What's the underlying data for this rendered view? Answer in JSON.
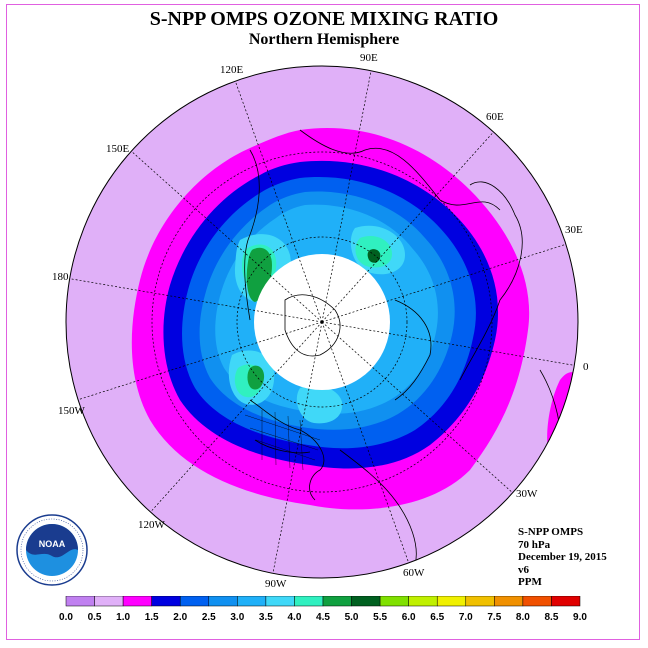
{
  "header": {
    "title": "S-NPP OMPS OZONE MIXING RATIO",
    "subtitle": "Northern Hemisphere"
  },
  "longitude_labels": [
    "90E",
    "60E",
    "30E",
    "0",
    "30W",
    "60W",
    "90W",
    "120W",
    "150W",
    "180",
    "150E",
    "120E"
  ],
  "info": {
    "instrument": "S-NPP OMPS",
    "pressure": "70 hPa",
    "date": "December 19, 2015",
    "version": "v6",
    "units": "PPM"
  },
  "logo": {
    "text": "NOAA",
    "ring_text": "NATIONAL OCEANIC AND ATMOSPHERIC ADMINISTRATION · U.S. DEPARTMENT OF COMMERCE"
  },
  "colorbar": {
    "ticks": [
      "0.0",
      "0.5",
      "1.0",
      "1.5",
      "2.0",
      "2.5",
      "3.0",
      "3.5",
      "4.0",
      "4.5",
      "5.0",
      "5.5",
      "6.0",
      "6.5",
      "7.0",
      "7.5",
      "8.0",
      "8.5",
      "9.0"
    ],
    "colors": [
      "#c080f0",
      "#e0b0f8",
      "#ff00ff",
      "#0000e0",
      "#0060f0",
      "#1090f0",
      "#20b0f8",
      "#40d8f8",
      "#30f0c0",
      "#10a040",
      "#006020",
      "#80e000",
      "#c0f000",
      "#f0f000",
      "#f0c000",
      "#f09000",
      "#f05000",
      "#e00000",
      "#804020"
    ]
  },
  "colors": {
    "background_fill": "#e0b0f8",
    "magenta": "#ff00ff",
    "dark_blue": "#0000e0",
    "mid_blue": "#0060f0",
    "light_blue": "#1090f0",
    "sky_blue": "#20b0f8",
    "cyan": "#40d8f8",
    "aqua": "#30f0c0",
    "green": "#10a040",
    "dark_green": "#006020",
    "no_data": "#ffffff"
  }
}
